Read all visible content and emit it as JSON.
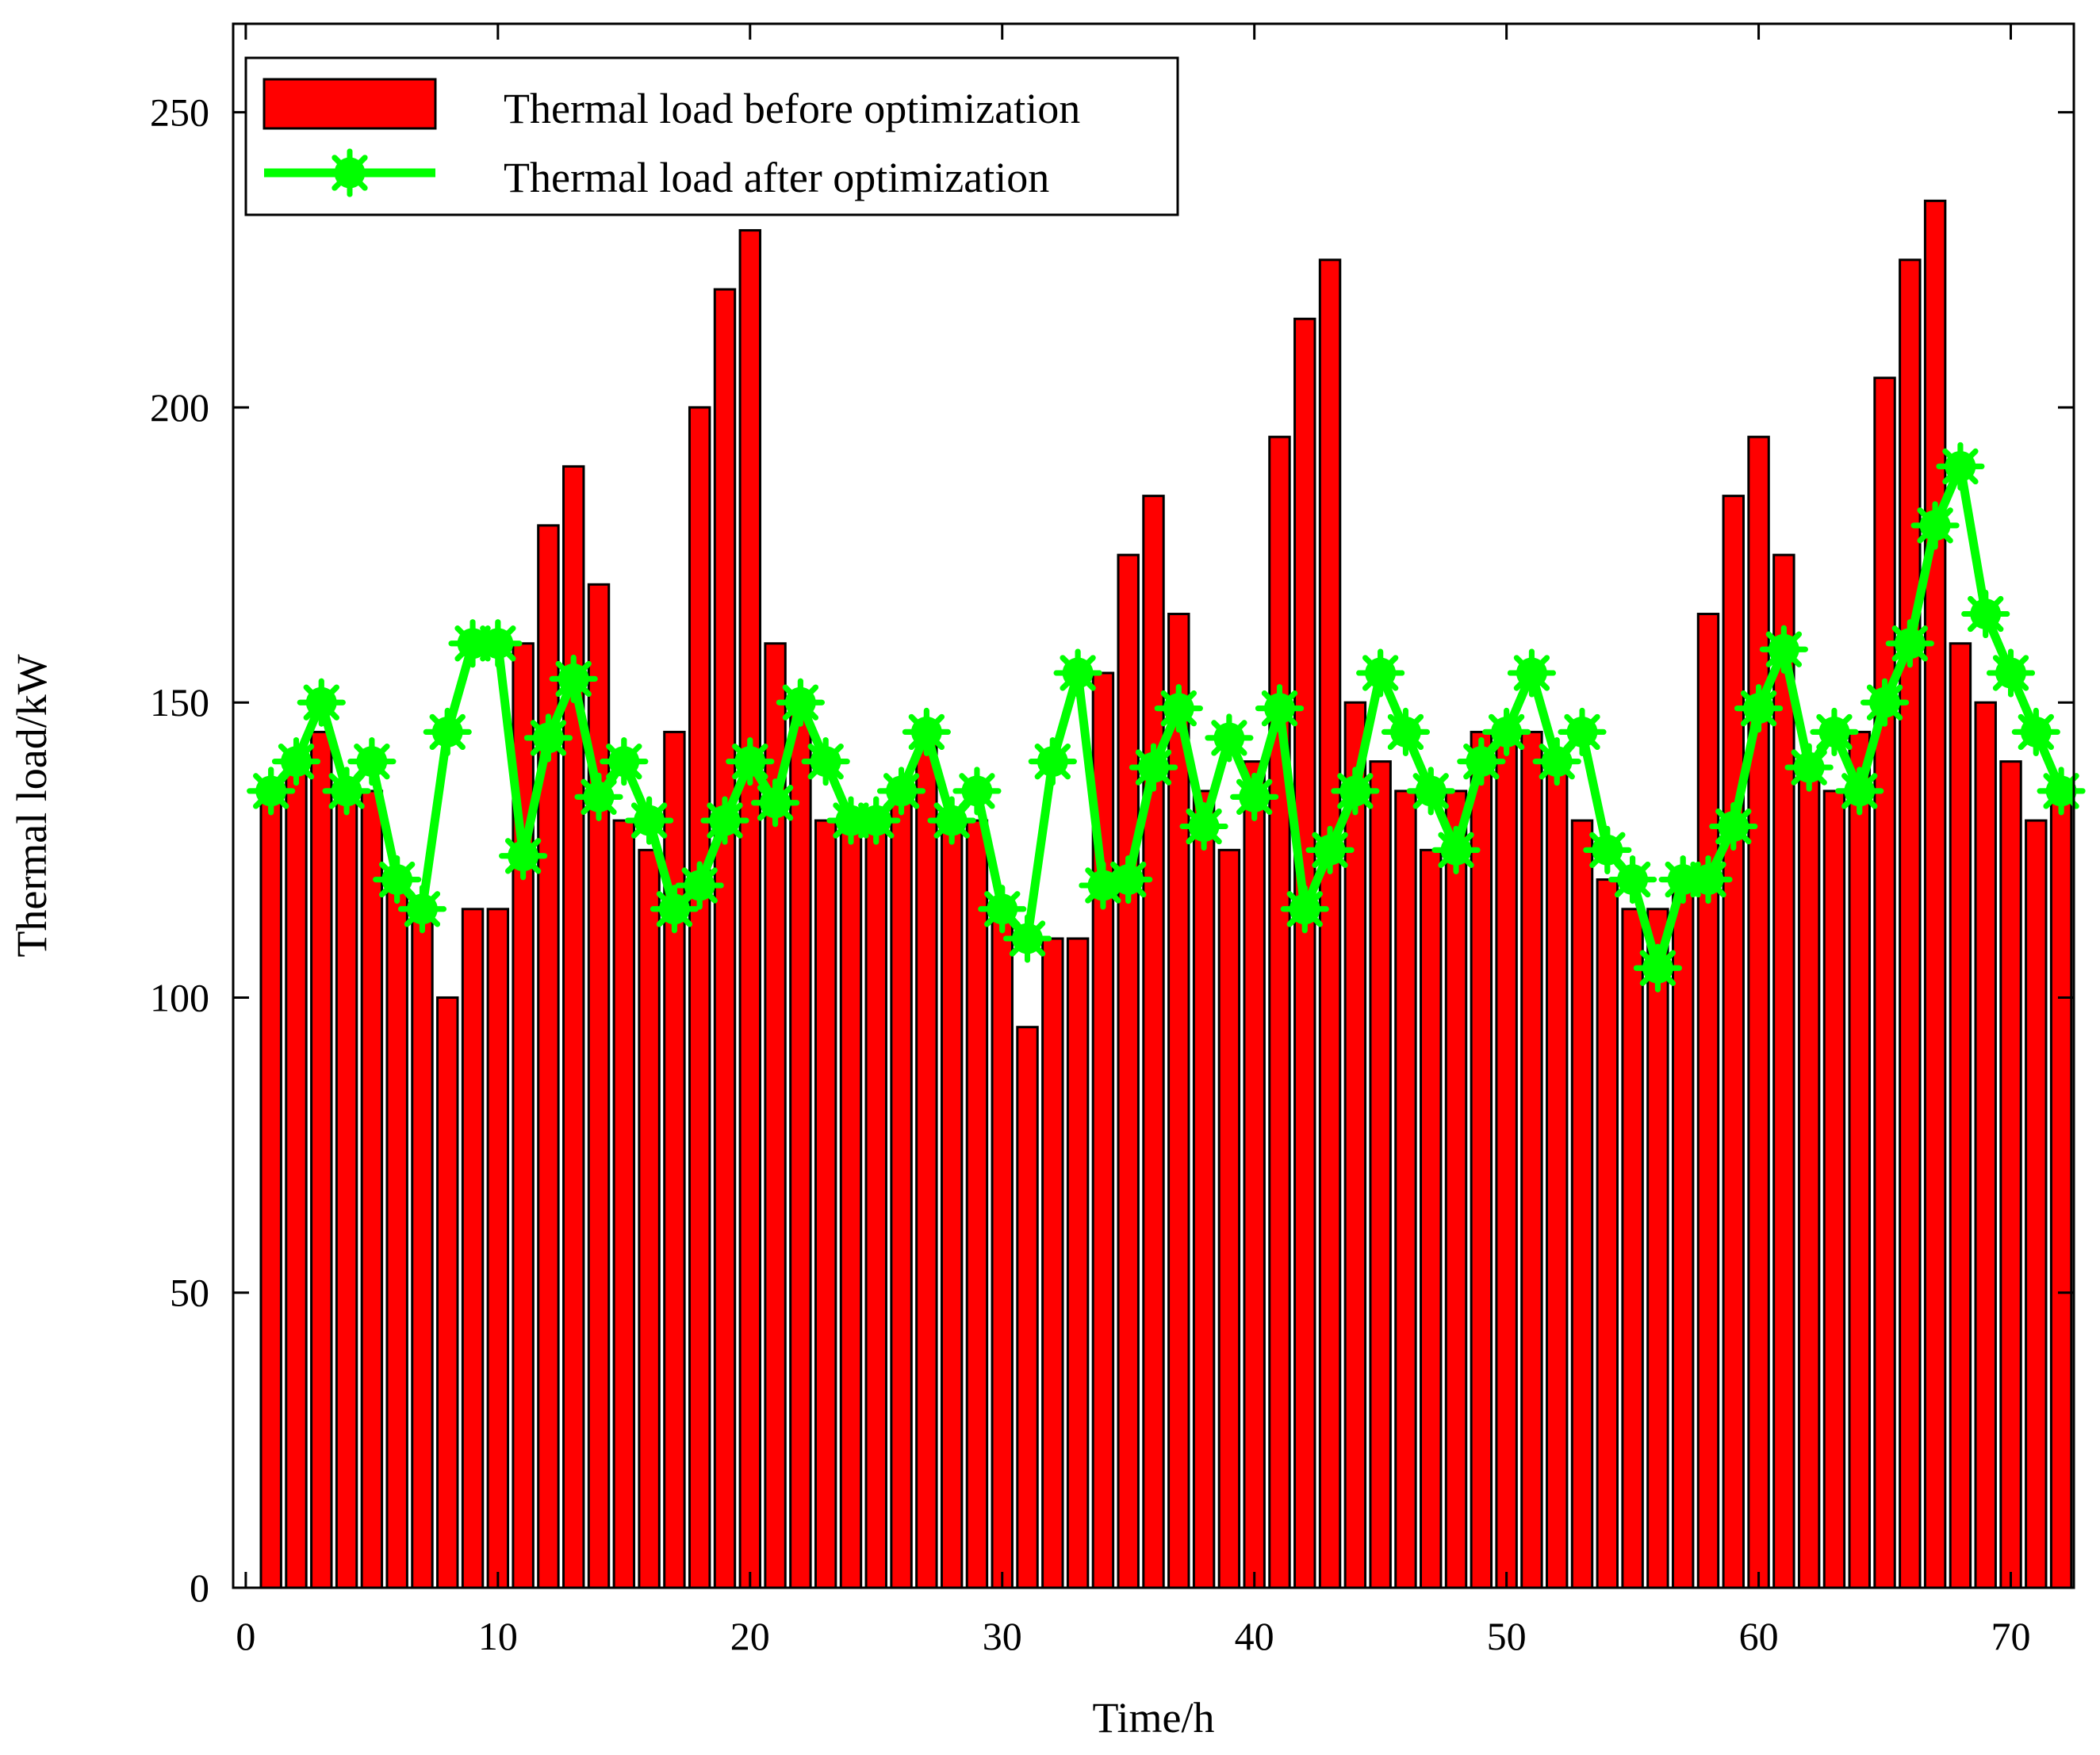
{
  "chart_data": {
    "type": "bar",
    "xlabel": "Time/h",
    "ylabel": "Thermal load/kW",
    "xlim": [
      -0.5,
      72.5
    ],
    "ylim": [
      0,
      265
    ],
    "x_ticks": [
      0,
      10,
      20,
      30,
      40,
      50,
      60,
      70
    ],
    "y_ticks": [
      0,
      50,
      100,
      150,
      200,
      250
    ],
    "grid": false,
    "legend_position": "top-left",
    "colors": {
      "bar": "#ff0000",
      "line": "#00ff00",
      "edge": "#000000"
    },
    "x": [
      1,
      2,
      3,
      4,
      5,
      6,
      7,
      8,
      9,
      10,
      11,
      12,
      13,
      14,
      15,
      16,
      17,
      18,
      19,
      20,
      21,
      22,
      23,
      24,
      25,
      26,
      27,
      28,
      29,
      30,
      31,
      32,
      33,
      34,
      35,
      36,
      37,
      38,
      39,
      40,
      41,
      42,
      43,
      44,
      45,
      46,
      47,
      48,
      49,
      50,
      51,
      52,
      53,
      54,
      55,
      56,
      57,
      58,
      59,
      60,
      61,
      62,
      63,
      64,
      65,
      66,
      67,
      68,
      69,
      70,
      71,
      72
    ],
    "series": [
      {
        "name": "Thermal load before optimization",
        "type": "bar",
        "values": [
          135,
          140,
          145,
          135,
          135,
          120,
          115,
          100,
          115,
          115,
          160,
          180,
          190,
          170,
          130,
          125,
          145,
          200,
          220,
          230,
          160,
          150,
          130,
          130,
          130,
          135,
          145,
          130,
          130,
          115,
          95,
          110,
          110,
          155,
          175,
          185,
          165,
          135,
          125,
          140,
          195,
          215,
          225,
          150,
          140,
          135,
          125,
          135,
          145,
          145,
          145,
          140,
          130,
          120,
          115,
          115,
          120,
          165,
          185,
          195,
          175,
          140,
          135,
          145,
          205,
          225,
          235,
          160,
          150,
          140,
          130,
          135
        ]
      },
      {
        "name": "Thermal load after optimization",
        "type": "line",
        "marker": "asterisk",
        "values": [
          135,
          140,
          150,
          135,
          140,
          120,
          115,
          145,
          160,
          160,
          124,
          144,
          154,
          134,
          140,
          130,
          115,
          119,
          130,
          140,
          133,
          150,
          140,
          130,
          130,
          135,
          145,
          130,
          135,
          115,
          110,
          140,
          155,
          119,
          120,
          139,
          149,
          129,
          144,
          134,
          149,
          115,
          125,
          135,
          155,
          145,
          135,
          125,
          140,
          145,
          155,
          140,
          145,
          125,
          120,
          105,
          120,
          120,
          129,
          149,
          159,
          139,
          145,
          135,
          150,
          160,
          180,
          190,
          165,
          155,
          145,
          135
        ]
      }
    ]
  }
}
